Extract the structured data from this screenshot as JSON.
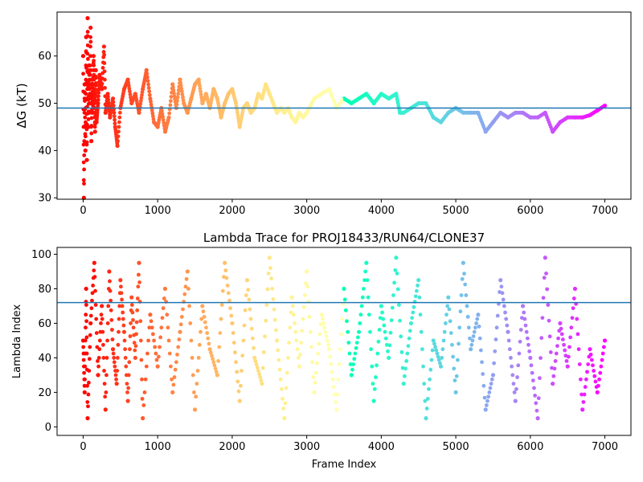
{
  "chart_data": [
    {
      "type": "scatter",
      "title": "",
      "xlabel": "",
      "ylabel": "ΔG (kT)",
      "xlim": [
        -350,
        7350
      ],
      "ylim": [
        29.7,
        69.3
      ],
      "xticks": [
        0,
        1000,
        2000,
        3000,
        4000,
        5000,
        6000,
        7000
      ],
      "yticks": [
        30,
        40,
        50,
        60
      ],
      "reference_line_y": 49.0,
      "colormap": "rainbow (red at frame 0 to violet at frame 7000)",
      "series": [
        {
          "x": [
            0,
            10,
            20,
            30,
            40,
            50,
            60,
            70,
            80,
            90,
            100,
            110,
            120,
            130,
            140,
            150,
            160,
            170,
            180,
            200,
            220,
            250,
            280,
            300,
            330,
            360,
            400,
            430,
            460,
            500,
            550,
            600,
            650,
            700,
            750,
            800,
            850,
            900,
            950,
            1000,
            1050,
            1100,
            1150,
            1200,
            1250,
            1300,
            1350,
            1400,
            1450,
            1500,
            1550,
            1600,
            1650,
            1700,
            1750,
            1800,
            1850,
            1900,
            1950,
            2000,
            2050,
            2100,
            2150,
            2200,
            2250,
            2300,
            2350,
            2400,
            2450,
            2500,
            2550,
            2600,
            2650,
            2700,
            2750,
            2800,
            2850,
            2900,
            2950,
            3000,
            3100,
            3200,
            3300,
            3400,
            3500,
            3600,
            3700,
            3800,
            3900,
            4000,
            4100,
            4200,
            4250,
            4300,
            4400,
            4500,
            4600,
            4700,
            4800,
            4900,
            5000,
            5100,
            5200,
            5300,
            5400,
            5500,
            5600,
            5700,
            5800,
            5900,
            6000,
            6100,
            6200,
            6300,
            6400,
            6500,
            6600,
            6700,
            6800,
            6900,
            7000
          ],
          "y": [
            60,
            30,
            54,
            40,
            64,
            38,
            68,
            45,
            58,
            50,
            66,
            42,
            55,
            48,
            60,
            52,
            44,
            57,
            46,
            50,
            56,
            53,
            62,
            48,
            52,
            47,
            51,
            45,
            41,
            49,
            53,
            55,
            50,
            52,
            48,
            53,
            57,
            51,
            46,
            45,
            49,
            44,
            47,
            54,
            49,
            55,
            50,
            48,
            51,
            54,
            55,
            50,
            52,
            49,
            53,
            51,
            47,
            50,
            52,
            53,
            50,
            45,
            49,
            50,
            48,
            49,
            52,
            51,
            54,
            52,
            50,
            48,
            49,
            48,
            49,
            47,
            46,
            48,
            47,
            48,
            51,
            52,
            53,
            49,
            51,
            50,
            51,
            52,
            50,
            52,
            51,
            52,
            48,
            48,
            49,
            50,
            50,
            47,
            46,
            48,
            49,
            48,
            48,
            48,
            44,
            46,
            48,
            47,
            48,
            48,
            47,
            47,
            48,
            44,
            46,
            47,
            47,
            47,
            47.5,
            48.5,
            49.5
          ]
        }
      ]
    },
    {
      "type": "scatter",
      "title": "Lambda Trace for PROJ18433/RUN64/CLONE37",
      "xlabel": "Frame Index",
      "ylabel": "Lambda Index",
      "xlim": [
        -350,
        7350
      ],
      "ylim": [
        -4.95,
        103.95
      ],
      "xticks": [
        0,
        1000,
        2000,
        3000,
        4000,
        5000,
        6000,
        7000
      ],
      "yticks": [
        0,
        20,
        40,
        60,
        80,
        100
      ],
      "reference_line_y": 72,
      "colormap": "rainbow (red at frame 0 to violet at frame 7000)",
      "series": [
        {
          "x": [
            0,
            20,
            40,
            60,
            100,
            150,
            200,
            250,
            300,
            350,
            400,
            450,
            500,
            550,
            600,
            650,
            700,
            750,
            800,
            900,
            1000,
            1100,
            1200,
            1300,
            1400,
            1500,
            1600,
            1700,
            1800,
            1900,
            2000,
            2100,
            2200,
            2300,
            2400,
            2500,
            2600,
            2700,
            2800,
            2900,
            3000,
            3100,
            3200,
            3300,
            3400,
            3500,
            3600,
            3700,
            3800,
            3900,
            4000,
            4100,
            4200,
            4300,
            4400,
            4500,
            4600,
            4700,
            4800,
            4900,
            5000,
            5100,
            5200,
            5300,
            5400,
            5500,
            5600,
            5700,
            5800,
            5900,
            6000,
            6100,
            6200,
            6300,
            6400,
            6500,
            6600,
            6700,
            6800,
            6900,
            7000
          ],
          "y": [
            50,
            20,
            80,
            5,
            60,
            95,
            30,
            70,
            10,
            90,
            45,
            25,
            85,
            55,
            15,
            75,
            40,
            95,
            5,
            65,
            35,
            80,
            20,
            55,
            90,
            10,
            70,
            45,
            30,
            95,
            60,
            15,
            85,
            40,
            25,
            98,
            50,
            5,
            75,
            35,
            90,
            20,
            65,
            45,
            10,
            80,
            30,
            55,
            95,
            15,
            70,
            40,
            98,
            25,
            60,
            85,
            5,
            50,
            35,
            75,
            20,
            95,
            45,
            65,
            10,
            30,
            85,
            55,
            15,
            70,
            40,
            5,
            98,
            25,
            60,
            35,
            80,
            10,
            45,
            20,
            50
          ]
        }
      ]
    }
  ]
}
